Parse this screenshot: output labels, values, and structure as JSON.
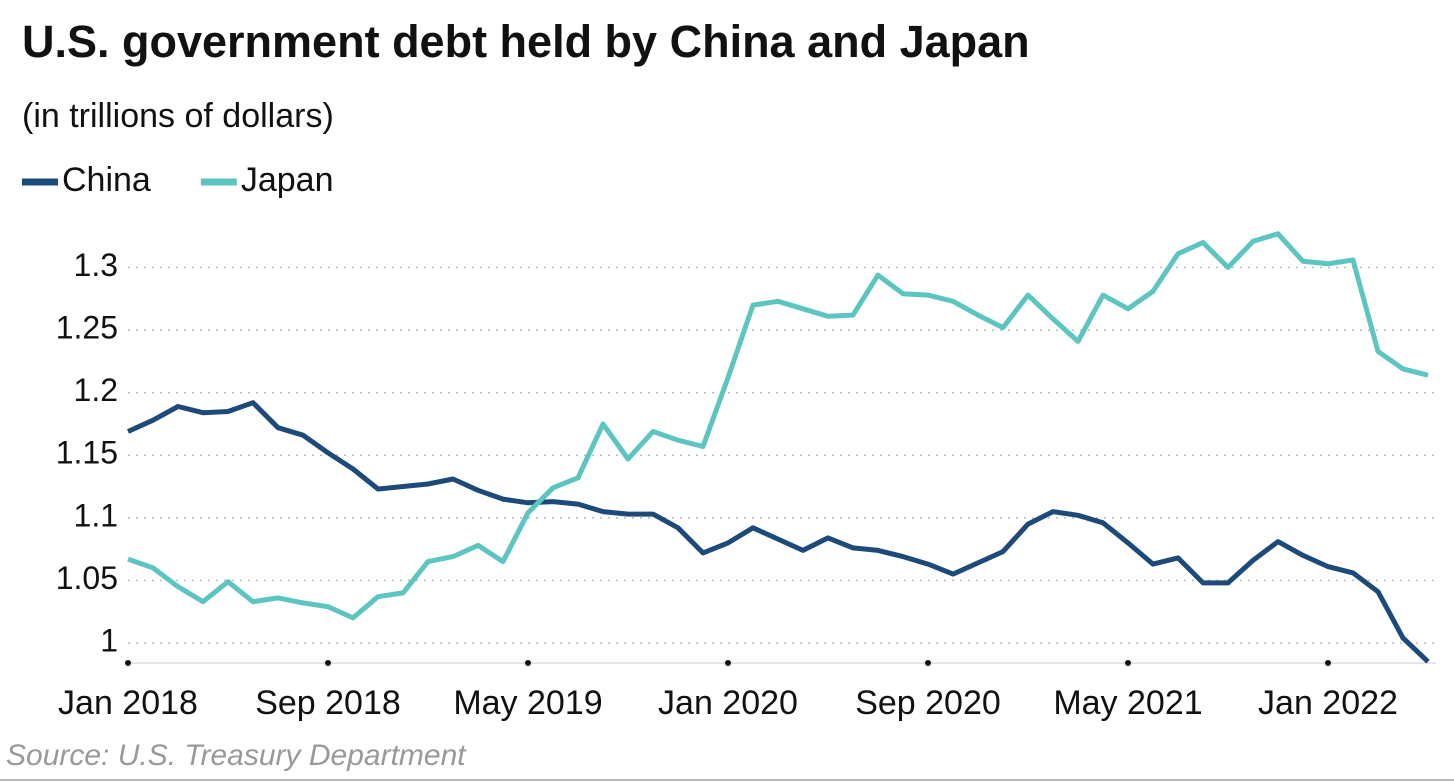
{
  "chart_data": {
    "type": "line",
    "title": "U.S. government debt held by China and Japan",
    "subtitle": "(in trillions of dollars)",
    "source": "Source: U.S. Treasury Department",
    "categories": [
      "Jan 2018",
      null,
      null,
      null,
      null,
      null,
      null,
      null,
      "Sep 2018",
      null,
      null,
      null,
      null,
      null,
      null,
      null,
      "May 2019",
      null,
      null,
      null,
      null,
      null,
      null,
      null,
      "Jan 2020",
      null,
      null,
      null,
      null,
      null,
      null,
      null,
      "Sep 2020",
      null,
      null,
      null,
      null,
      null,
      null,
      null,
      "May 2021",
      null,
      null,
      null,
      null,
      null,
      null,
      null,
      "Jan 2022",
      null,
      null,
      null,
      null
    ],
    "series": [
      {
        "name": "China",
        "color": "#1d4a78",
        "values": [
          1.169,
          1.178,
          1.189,
          1.184,
          1.185,
          1.192,
          1.172,
          1.166,
          1.152,
          1.139,
          1.123,
          1.125,
          1.127,
          1.131,
          1.122,
          1.115,
          1.112,
          1.113,
          1.111,
          1.105,
          1.103,
          1.103,
          1.092,
          1.072,
          1.08,
          1.092,
          1.083,
          1.074,
          1.084,
          1.076,
          1.074,
          1.069,
          1.063,
          1.055,
          1.064,
          1.073,
          1.095,
          1.105,
          1.102,
          1.096,
          1.08,
          1.063,
          1.068,
          1.048,
          1.048,
          1.066,
          1.081,
          1.07,
          1.061,
          1.056,
          1.041,
          1.004,
          0.985
        ]
      },
      {
        "name": "Japan",
        "color": "#5cc5c0",
        "values": [
          1.067,
          1.06,
          1.045,
          1.033,
          1.049,
          1.033,
          1.036,
          1.032,
          1.029,
          1.02,
          1.037,
          1.04,
          1.065,
          1.069,
          1.078,
          1.065,
          1.104,
          1.124,
          1.132,
          1.175,
          1.147,
          1.169,
          1.162,
          1.157,
          1.212,
          1.27,
          1.273,
          1.267,
          1.261,
          1.262,
          1.294,
          1.279,
          1.278,
          1.273,
          1.262,
          1.252,
          1.278,
          1.259,
          1.241,
          1.278,
          1.267,
          1.281,
          1.311,
          1.32,
          1.3,
          1.321,
          1.327,
          1.305,
          1.303,
          1.306,
          1.233,
          1.219,
          1.214
        ]
      }
    ],
    "ylim": [
      0.984,
      1.33
    ],
    "yticks": [
      1,
      1.05,
      1.1,
      1.15,
      1.2,
      1.25,
      1.3
    ],
    "grid": true
  }
}
